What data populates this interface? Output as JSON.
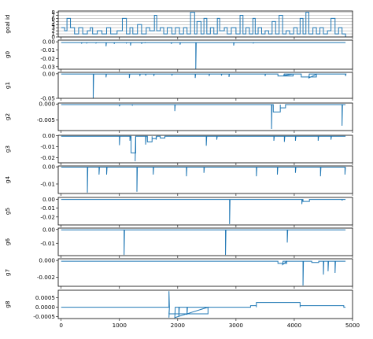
{
  "chart_data": {
    "type": "line",
    "layout": "stacked subplots sharing x",
    "line_color": "#1f77b4",
    "x_range": [
      -50,
      5000
    ],
    "x_ticks": [
      0,
      1000,
      2000,
      3000,
      4000,
      5000
    ],
    "x_tick_labels": [
      "0",
      "1000",
      "2000",
      "3000",
      "4000",
      "5000"
    ],
    "panels": [
      {
        "ylabel": "goal id",
        "grid": true,
        "ylim": [
          0,
          8.4
        ],
        "yticks": [
          0,
          1,
          2,
          3,
          4,
          5,
          6,
          7,
          8
        ],
        "ytick_labels": [
          "0",
          "1",
          "2",
          "3",
          "4",
          "5",
          "6",
          "7",
          "8"
        ],
        "baseline": 3,
        "steps": [
          [
            0,
            3
          ],
          [
            60,
            2
          ],
          [
            100,
            6
          ],
          [
            160,
            3
          ],
          [
            230,
            1
          ],
          [
            300,
            3
          ],
          [
            370,
            1
          ],
          [
            450,
            2
          ],
          [
            500,
            3
          ],
          [
            540,
            1
          ],
          [
            620,
            2
          ],
          [
            700,
            1
          ],
          [
            780,
            3
          ],
          [
            850,
            1
          ],
          [
            960,
            2
          ],
          [
            1050,
            6
          ],
          [
            1120,
            1
          ],
          [
            1180,
            3
          ],
          [
            1230,
            1
          ],
          [
            1310,
            4
          ],
          [
            1380,
            1
          ],
          [
            1460,
            3
          ],
          [
            1520,
            2
          ],
          [
            1600,
            7
          ],
          [
            1640,
            2
          ],
          [
            1700,
            3
          ],
          [
            1760,
            1
          ],
          [
            1820,
            3
          ],
          [
            1900,
            1
          ],
          [
            1960,
            3
          ],
          [
            2030,
            1
          ],
          [
            2100,
            3
          ],
          [
            2160,
            1
          ],
          [
            2220,
            8
          ],
          [
            2290,
            1
          ],
          [
            2330,
            5
          ],
          [
            2400,
            1
          ],
          [
            2450,
            6
          ],
          [
            2500,
            1
          ],
          [
            2560,
            3
          ],
          [
            2620,
            1
          ],
          [
            2680,
            6
          ],
          [
            2720,
            2
          ],
          [
            2800,
            3
          ],
          [
            2850,
            1
          ],
          [
            2920,
            3
          ],
          [
            3000,
            1
          ],
          [
            3070,
            7
          ],
          [
            3120,
            1
          ],
          [
            3170,
            3
          ],
          [
            3230,
            1
          ],
          [
            3290,
            6
          ],
          [
            3330,
            1
          ],
          [
            3380,
            3
          ],
          [
            3440,
            1
          ],
          [
            3500,
            2
          ],
          [
            3560,
            1
          ],
          [
            3620,
            5
          ],
          [
            3680,
            1
          ],
          [
            3740,
            7
          ],
          [
            3800,
            1
          ],
          [
            3860,
            2
          ],
          [
            3920,
            1
          ],
          [
            3990,
            3
          ],
          [
            4050,
            1
          ],
          [
            4100,
            6
          ],
          [
            4150,
            1
          ],
          [
            4200,
            8
          ],
          [
            4250,
            1
          ],
          [
            4320,
            3
          ],
          [
            4380,
            1
          ],
          [
            4440,
            3
          ],
          [
            4500,
            1
          ],
          [
            4570,
            2
          ],
          [
            4630,
            6
          ],
          [
            4700,
            1
          ],
          [
            4760,
            3
          ],
          [
            4820,
            1
          ],
          [
            4880,
            0
          ]
        ]
      },
      {
        "ylabel": "g0",
        "ylim": [
          -0.033,
          0.002
        ],
        "yticks": [
          0,
          -0.01,
          -0.02,
          -0.03
        ],
        "ytick_labels": [
          "0.00",
          "-0.01",
          "-0.02",
          "-0.03"
        ],
        "baseline": -0.001,
        "noise": -0.0006,
        "spikes": [
          [
            350,
            -0.0022
          ],
          [
            440,
            -0.0015
          ],
          [
            600,
            -0.0015
          ],
          [
            770,
            -0.0055
          ],
          [
            910,
            -0.0025
          ],
          [
            1120,
            -0.0015
          ],
          [
            1190,
            -0.0045
          ],
          [
            1380,
            -0.0025
          ],
          [
            1440,
            -0.0012
          ],
          [
            1890,
            -0.0025
          ],
          [
            2040,
            -0.0035
          ],
          [
            2310,
            -0.0325
          ],
          [
            2960,
            -0.0045
          ],
          [
            3300,
            -0.0015
          ]
        ]
      },
      {
        "ylabel": "g1",
        "ylim": [
          -0.05,
          0.003
        ],
        "yticks": [
          0,
          -0.05
        ],
        "ytick_labels": [
          "0.00",
          "-0.05"
        ],
        "baseline": -0.0005,
        "noise": -0.0006,
        "spikes": [
          [
            550,
            -0.05
          ],
          [
            770,
            -0.0072
          ],
          [
            1170,
            -0.0085
          ],
          [
            1350,
            -0.0045
          ],
          [
            1450,
            -0.0035
          ],
          [
            1590,
            -0.0045
          ],
          [
            1900,
            -0.0035
          ],
          [
            2300,
            -0.0085
          ],
          [
            2540,
            -0.0045
          ],
          [
            2750,
            -0.0035
          ],
          [
            2880,
            -0.0065
          ],
          [
            3500,
            -0.0045
          ],
          [
            3820,
            -0.0035
          ],
          [
            4250,
            -0.0085
          ],
          [
            4880,
            -0.0045
          ]
        ],
        "segments": [
          [
            3720,
            3980,
            -0.0045
          ],
          [
            4120,
            4380,
            -0.0065
          ]
        ]
      },
      {
        "ylabel": "g2",
        "ylim": [
          -0.0083,
          0.0003
        ],
        "yticks": [
          0,
          -0.005
        ],
        "ytick_labels": [
          "0.000",
          "-0.005"
        ],
        "baseline": -0.0002,
        "noise": -0.0002,
        "spikes": [
          [
            1000,
            -0.0007
          ],
          [
            1220,
            -0.0005
          ],
          [
            1950,
            -0.0022
          ],
          [
            3610,
            -0.0078
          ],
          [
            4820,
            -0.0068
          ]
        ],
        "segments": [
          [
            3640,
            3760,
            -0.0025
          ],
          [
            3760,
            3850,
            -0.0012
          ]
        ]
      },
      {
        "ylabel": "g3",
        "ylim": [
          -0.0245,
          0.0005
        ],
        "yticks": [
          0,
          -0.01,
          -0.02
        ],
        "ytick_labels": [
          "0.00",
          "-0.01",
          "-0.02"
        ],
        "baseline": -0.0004,
        "noise": -0.0005,
        "spikes": [
          [
            1000,
            -0.0085
          ],
          [
            1180,
            -0.0045
          ],
          [
            1270,
            -0.023
          ],
          [
            1450,
            -0.008
          ],
          [
            1630,
            -0.0035
          ],
          [
            2490,
            -0.009
          ],
          [
            2670,
            -0.0035
          ],
          [
            3650,
            -0.0045
          ],
          [
            3830,
            -0.0055
          ],
          [
            4020,
            -0.0045
          ],
          [
            4410,
            -0.0045
          ],
          [
            4630,
            -0.0035
          ]
        ],
        "segments": [
          [
            1200,
            1280,
            -0.0155
          ],
          [
            1480,
            1560,
            -0.0055
          ],
          [
            1560,
            1630,
            -0.0025
          ],
          [
            1700,
            1780,
            -0.002
          ]
        ]
      },
      {
        "ylabel": "g4",
        "ylim": [
          -0.0155,
          0.0005
        ],
        "yticks": [
          0,
          -0.01
        ],
        "ytick_labels": [
          "0.00",
          "-0.01"
        ],
        "baseline": -0.0002,
        "noise": -0.0003,
        "spikes": [
          [
            450,
            -0.015
          ],
          [
            650,
            -0.0045
          ],
          [
            780,
            -0.0045
          ],
          [
            1300,
            -0.0145
          ],
          [
            1580,
            -0.0045
          ],
          [
            2150,
            -0.0055
          ],
          [
            2450,
            -0.0035
          ],
          [
            3350,
            -0.0055
          ],
          [
            3710,
            -0.0045
          ],
          [
            4020,
            -0.0035
          ],
          [
            4450,
            -0.0055
          ],
          [
            4870,
            -0.0045
          ]
        ]
      },
      {
        "ylabel": "g5",
        "ylim": [
          -0.029,
          0.002
        ],
        "yticks": [
          0,
          -0.01,
          -0.02
        ],
        "ytick_labels": [
          "0.00",
          "-0.01",
          "-0.02"
        ],
        "baseline": -0.0003,
        "noise": -0.0005,
        "spikes": [
          [
            2890,
            -0.028
          ],
          [
            4130,
            -0.0055
          ],
          [
            4820,
            -0.0015
          ]
        ],
        "segments": [
          [
            4150,
            4260,
            -0.0025
          ]
        ]
      },
      {
        "ylabel": "g6",
        "ylim": [
          -0.019,
          0.001
        ],
        "yticks": [
          0,
          -0.01
        ],
        "ytick_labels": [
          "0.00",
          "-0.01"
        ],
        "baseline": -0.0003,
        "noise": -0.0005,
        "spikes": [
          [
            1080,
            -0.0185
          ],
          [
            2820,
            -0.0185
          ],
          [
            3880,
            -0.0095
          ]
        ]
      },
      {
        "ylabel": "g7",
        "ylim": [
          -0.0031,
          0.0002
        ],
        "yticks": [
          0,
          -0.002
        ],
        "ytick_labels": [
          "0.000",
          "-0.002"
        ],
        "baseline": -0.0001,
        "noise": -5e-05,
        "spikes": [
          [
            3800,
            -0.0005
          ],
          [
            4150,
            -0.003
          ],
          [
            4500,
            -0.0017
          ],
          [
            4580,
            -0.0013
          ],
          [
            4700,
            -0.0015
          ]
        ],
        "segments": [
          [
            3720,
            3870,
            -0.00035
          ],
          [
            4300,
            4420,
            -0.00025
          ]
        ]
      },
      {
        "ylabel": "g8",
        "ylim": [
          -0.0006,
          0.0009
        ],
        "yticks": [
          0.0005,
          0,
          -0.0005
        ],
        "ytick_labels": [
          "0.0005",
          "0.0000",
          "-0.0005"
        ],
        "baseline": 0,
        "noise": 0,
        "spikes": [
          [
            1850,
            0.00085
          ],
          [
            1850,
            -0.00055
          ],
          [
            1950,
            -0.00055
          ],
          [
            2020,
            -0.0005
          ],
          [
            2160,
            -0.0004
          ]
        ],
        "segments": [
          [
            1850,
            2520,
            -0.00035
          ],
          [
            3250,
            3350,
            8e-05
          ],
          [
            3350,
            4100,
            0.00025
          ],
          [
            4100,
            4850,
            8e-05
          ]
        ]
      }
    ]
  }
}
